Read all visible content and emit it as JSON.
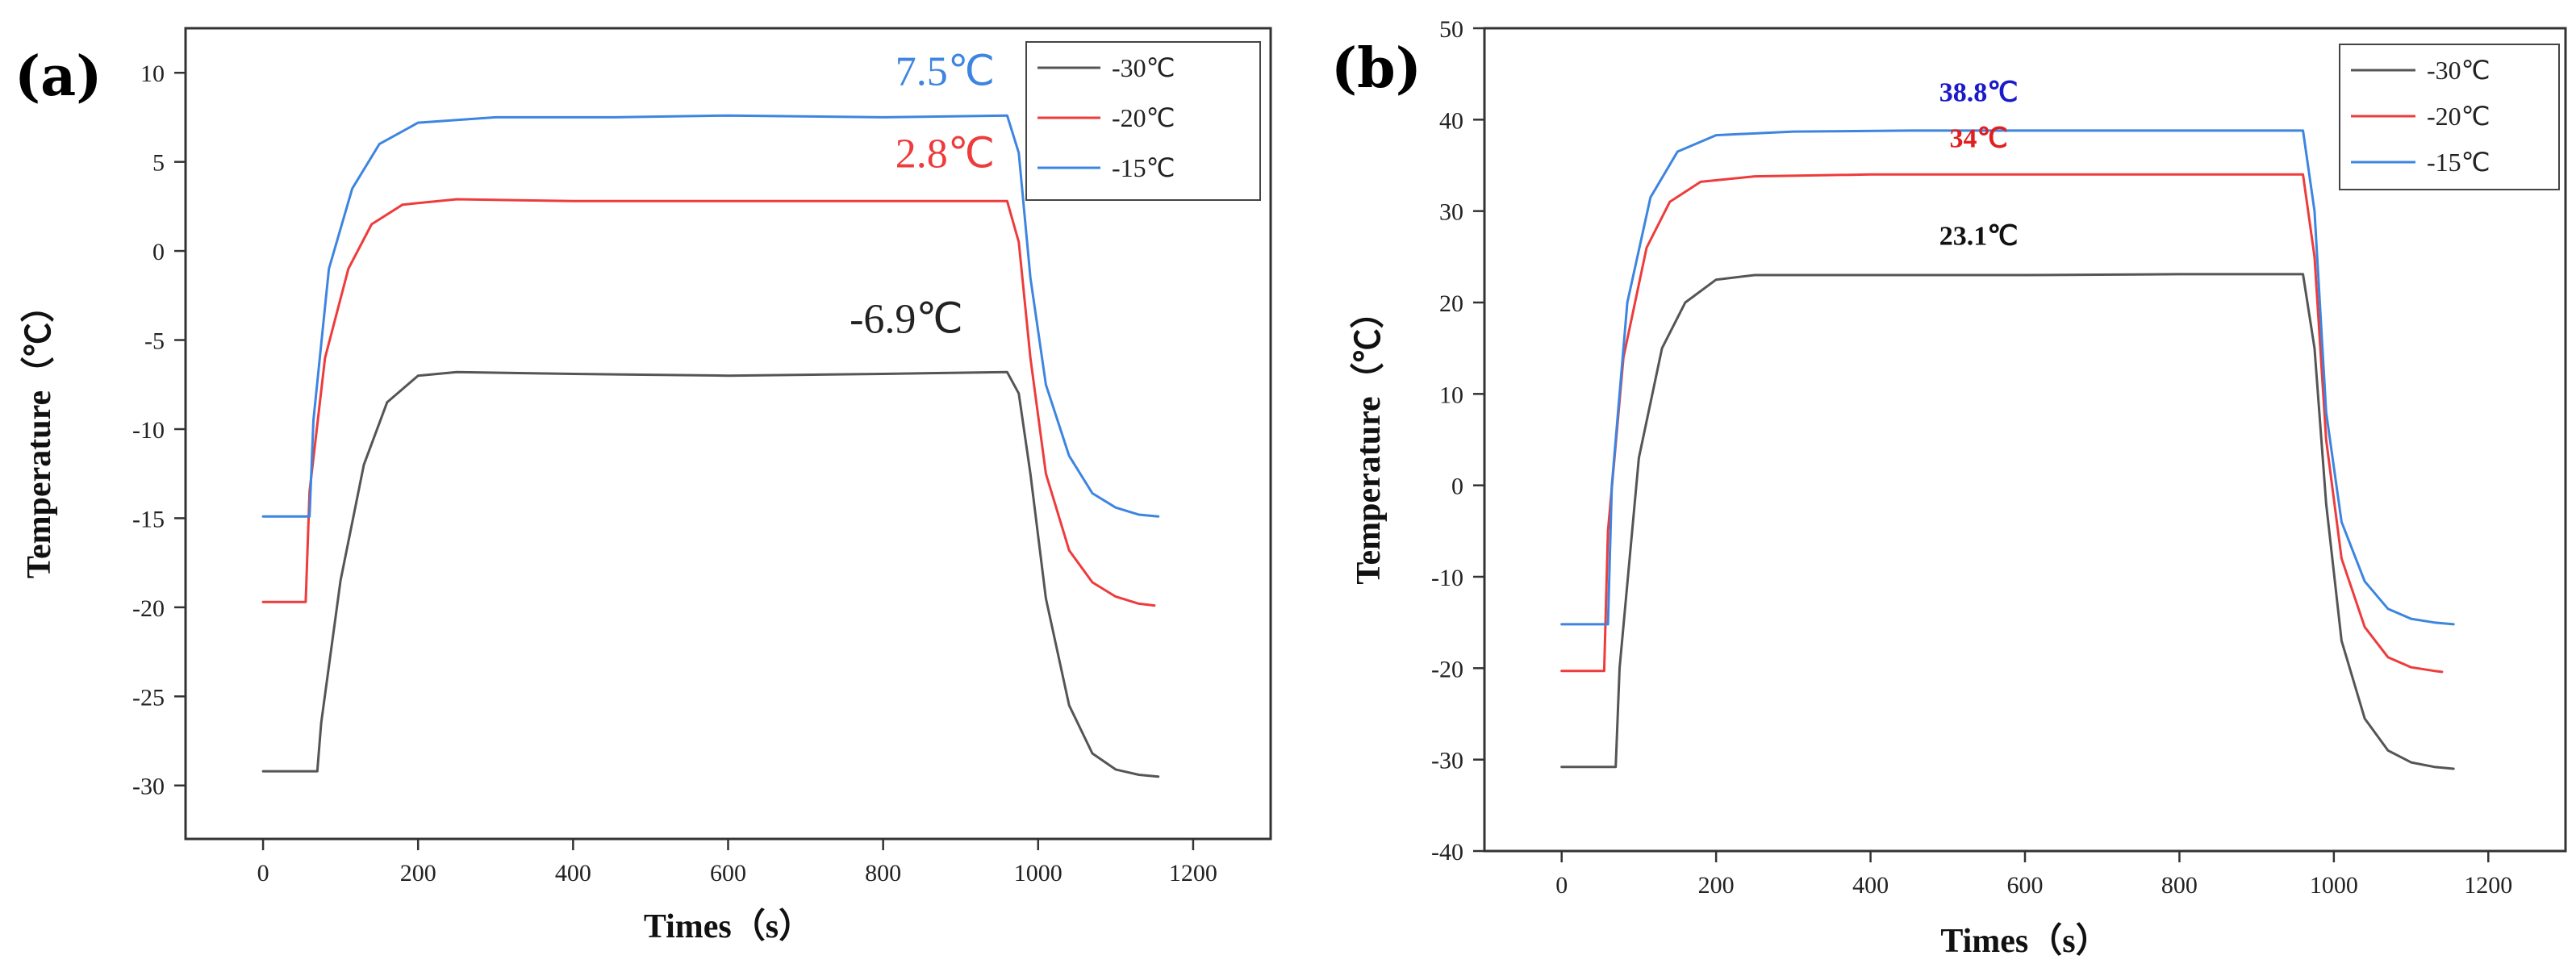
{
  "chart_data": [
    {
      "panel": "(a)",
      "type": "line",
      "xlabel": "Times（s）",
      "ylabel": "Temperature（℃）",
      "xlim": [
        -100,
        1300
      ],
      "ylim": [
        -33,
        12.5
      ],
      "xticks": [
        0,
        200,
        400,
        600,
        800,
        1000,
        1200
      ],
      "yticks": [
        -30,
        -25,
        -20,
        -15,
        -10,
        -5,
        0,
        5,
        10
      ],
      "legend_position": "top-right",
      "series": [
        {
          "name": "-30℃",
          "color": "#555555",
          "x": [
            0,
            70,
            75,
            100,
            130,
            160,
            200,
            250,
            400,
            600,
            800,
            960,
            975,
            990,
            1010,
            1040,
            1070,
            1100,
            1130,
            1155
          ],
          "y": [
            -29.2,
            -29.2,
            -26.5,
            -18.5,
            -12.0,
            -8.5,
            -7.0,
            -6.8,
            -6.9,
            -7.0,
            -6.9,
            -6.8,
            -8.0,
            -12.5,
            -19.5,
            -25.5,
            -28.2,
            -29.1,
            -29.4,
            -29.5
          ]
        },
        {
          "name": "-20℃",
          "color": "#ee3b3b",
          "x": [
            0,
            55,
            60,
            80,
            110,
            140,
            180,
            250,
            400,
            600,
            800,
            960,
            975,
            990,
            1010,
            1040,
            1070,
            1100,
            1130,
            1150
          ],
          "y": [
            -19.7,
            -19.7,
            -13.5,
            -6.0,
            -1.0,
            1.5,
            2.6,
            2.9,
            2.8,
            2.8,
            2.8,
            2.8,
            0.5,
            -6.0,
            -12.5,
            -16.8,
            -18.6,
            -19.4,
            -19.8,
            -19.9
          ]
        },
        {
          "name": "-15℃",
          "color": "#3d85e0",
          "x": [
            0,
            60,
            65,
            85,
            115,
            150,
            200,
            300,
            450,
            600,
            800,
            960,
            975,
            990,
            1010,
            1040,
            1070,
            1100,
            1130,
            1155
          ],
          "y": [
            -14.9,
            -14.9,
            -9.5,
            -1.0,
            3.5,
            6.0,
            7.2,
            7.5,
            7.5,
            7.6,
            7.5,
            7.6,
            5.5,
            -1.5,
            -7.5,
            -11.5,
            -13.6,
            -14.4,
            -14.8,
            -14.9
          ]
        }
      ],
      "annotations": [
        {
          "text": "7.5℃",
          "color": "#3d85e0",
          "x": 880,
          "y": 9.3
        },
        {
          "text": "2.8℃",
          "color": "#ee3b3b",
          "x": 880,
          "y": 4.7
        },
        {
          "text": "-6.9℃",
          "color": "#222222",
          "x": 830,
          "y": -4.6
        }
      ]
    },
    {
      "panel": "(b)",
      "type": "line",
      "xlabel": "Times（s）",
      "ylabel": "Temperature（℃）",
      "xlim": [
        -100,
        1300
      ],
      "ylim": [
        -40,
        50
      ],
      "xticks": [
        0,
        200,
        400,
        600,
        800,
        1000,
        1200
      ],
      "yticks": [
        -40,
        -30,
        -20,
        -10,
        0,
        10,
        20,
        30,
        40,
        50
      ],
      "legend_position": "top-right",
      "series": [
        {
          "name": "-30℃",
          "color": "#555555",
          "x": [
            0,
            70,
            75,
            100,
            130,
            160,
            200,
            250,
            400,
            600,
            800,
            960,
            975,
            990,
            1010,
            1040,
            1070,
            1100,
            1130,
            1155
          ],
          "y": [
            -30.8,
            -30.8,
            -20.0,
            3.0,
            15.0,
            20.0,
            22.5,
            23.0,
            23.0,
            23.0,
            23.1,
            23.1,
            15.0,
            -2.0,
            -17.0,
            -25.5,
            -29.0,
            -30.3,
            -30.8,
            -31.0
          ]
        },
        {
          "name": "-20℃",
          "color": "#ee3b3b",
          "x": [
            0,
            55,
            60,
            80,
            110,
            140,
            180,
            250,
            400,
            600,
            800,
            960,
            975,
            990,
            1010,
            1040,
            1070,
            1100,
            1130,
            1140
          ],
          "y": [
            -20.3,
            -20.3,
            -5.0,
            14.0,
            26.0,
            31.0,
            33.2,
            33.8,
            34.0,
            34.0,
            34.0,
            34.0,
            25.0,
            5.0,
            -8.0,
            -15.5,
            -18.8,
            -19.9,
            -20.3,
            -20.4
          ]
        },
        {
          "name": "-15℃",
          "color": "#3d85e0",
          "x": [
            0,
            60,
            65,
            85,
            115,
            150,
            200,
            300,
            450,
            600,
            800,
            960,
            975,
            990,
            1010,
            1040,
            1070,
            1100,
            1130,
            1155
          ],
          "y": [
            -15.2,
            -15.2,
            0.0,
            20.0,
            31.5,
            36.5,
            38.3,
            38.7,
            38.8,
            38.8,
            38.8,
            38.8,
            30.0,
            8.0,
            -4.0,
            -10.5,
            -13.5,
            -14.6,
            -15.0,
            -15.2
          ]
        }
      ],
      "annotations": [
        {
          "text": "38.8℃",
          "color": "#1a1acc",
          "x": 540,
          "y": 42.0
        },
        {
          "text": "34℃",
          "color": "#e02020",
          "x": 540,
          "y": 37.0
        },
        {
          "text": "23.1℃",
          "color": "#111111",
          "x": 540,
          "y": 26.3
        }
      ]
    }
  ]
}
